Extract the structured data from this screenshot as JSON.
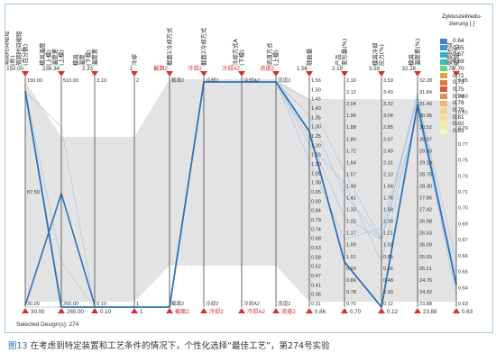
{
  "chart_data": {
    "type": "parallel_coordinates",
    "axes": [
      {
        "label": "周期时间缩短\n(秒)\n周期时间缩短\n(百分数)",
        "top_value": "150.00",
        "bottom_value": "30.00",
        "ticks": [
          "150.00",
          "87.50",
          "30.00"
        ],
        "label_color": "#333333"
      },
      {
        "label": "模具温度\n(上模)\n温度差\n(上模)",
        "top_value": "238.34",
        "bottom_value": "265.00",
        "ticks": [
          "510.00",
          "265.00"
        ],
        "label_color": "#333333"
      },
      {
        "label": "模具\n温度\n(下模)\n温度差",
        "top_value": "2.33",
        "bottom_value": "0.10",
        "ticks": [
          "3.10",
          "0.10"
        ],
        "label_color": "#333333"
      },
      {
        "label": "冷却",
        "top_value": "1",
        "bottom_value": "1",
        "ticks": [
          "2",
          "1"
        ],
        "label_color": "#333333"
      },
      {
        "label": "截面1冷却方式",
        "top_value": "截面2",
        "bottom_value": "截面2",
        "ticks": [
          "截面2",
          "截面2"
        ],
        "label_color": "#cc2b2b"
      },
      {
        "label": "截面2冷却方式",
        "top_value": "冷却2",
        "bottom_value": "冷却2",
        "ticks": [
          "冷却2",
          "冷却2"
        ],
        "label_color": "#cc2b2b"
      },
      {
        "label": "冷却方式A\n(下模)",
        "top_value": "冷却A2",
        "bottom_value": "冷却A2",
        "ticks": [
          "冷却A2",
          "冷却A2"
        ],
        "label_color": "#cc2b2b"
      },
      {
        "label": "流道方式\n(上模)",
        "top_value": "流道2",
        "bottom_value": "流道2",
        "ticks": [
          "流道2",
          "流道2"
        ],
        "label_color": "#cc2b2b"
      },
      {
        "label": "翘曲量",
        "top_value": "1.56",
        "bottom_value": "0.86",
        "ticks": [
          "1.56",
          "1.50",
          "1.45",
          "1.40",
          "1.35",
          "1.30",
          "1.25",
          "1.20",
          "1.15",
          "1.10",
          "1.05",
          "1.00",
          "0.95",
          "0.90",
          "0.84",
          "0.79",
          "0.74",
          "0.68",
          "0.63",
          "0.58",
          "0.52",
          "0.47",
          "0.41",
          "0.36",
          "0.31"
        ],
        "label_color": "#333333"
      },
      {
        "label": "产品\n变形量(%)",
        "top_value": "2.19",
        "bottom_value": "0.70",
        "ticks": [
          "2.19",
          "2.12",
          "2.04",
          "1.96",
          "1.88",
          "1.80",
          "1.72",
          "1.64",
          "1.57",
          "1.49",
          "1.41",
          "1.33",
          "1.25",
          "1.17",
          "1.09",
          "1.01",
          "0.93",
          "0.86",
          "0.78",
          "0.70"
        ],
        "label_color": "#333333"
      },
      {
        "label": "模具冷却\n应力(%)",
        "top_value": "3.59",
        "bottom_value": "0.12",
        "ticks": [
          "3.59",
          "3.40",
          "3.22",
          "3.04",
          "2.85",
          "2.67",
          "2.49",
          "2.31",
          "2.12",
          "1.94",
          "1.76",
          "1.58",
          "1.39",
          "1.21",
          "1.03",
          "0.85",
          "0.66",
          "0.48",
          "0.30",
          "0.12"
        ],
        "label_color": "#333333"
      },
      {
        "label": "模具\n温度差(%)",
        "top_value": "32.28",
        "bottom_value": "23.88",
        "ticks": [
          "32.28",
          "31.84",
          "31.40",
          "30.96",
          "30.52",
          "30.07",
          "29.63",
          "29.19",
          "28.75",
          "28.30",
          "27.86",
          "27.42",
          "26.98",
          "26.53",
          "26.09",
          "25.65",
          "25.21",
          "24.76",
          "24.32",
          "23.88"
        ],
        "label_color": "#333333"
      },
      {
        "label": "周期时间\n缩短(%)",
        "top_value": "0.70",
        "bottom_value": "0.63",
        "ticks": [
          "0.85",
          "0.83",
          "0.81",
          "0.79",
          "0.77",
          "0.75",
          "0.73",
          "0.71",
          "0.70",
          "0.69",
          "0.67",
          "0.66",
          "0.65",
          "0.64",
          "0.63"
        ],
        "label_color": "#333333"
      }
    ],
    "selected_label": "Selected Design(s): 274",
    "colorbar": {
      "title": "Zykluszeitredu-\nzierung [ ]",
      "entries": [
        {
          "value": "0.64",
          "color": "#4a7fc4"
        },
        {
          "value": "0.65",
          "color": "#3a9ad6"
        },
        {
          "value": "0.67",
          "color": "#2fb3c9"
        },
        {
          "value": "0.69",
          "color": "#3cbfa9"
        },
        {
          "value": "0.70",
          "color": "#6fcf8a"
        },
        {
          "value": "0.72",
          "color": "#e0a63a"
        },
        {
          "value": "0.73",
          "color": "#e07a3a"
        },
        {
          "value": "0.75",
          "color": "#d9573a"
        },
        {
          "value": "0.76",
          "color": "#e68c5a"
        },
        {
          "value": "0.78",
          "color": "#f3b07a"
        },
        {
          "value": "0.79",
          "color": "#f7cf8a"
        },
        {
          "value": "0.81",
          "color": "#f3e08a"
        },
        {
          "value": "0.82",
          "color": "#f6ec9c"
        },
        {
          "value": "0.83",
          "color": "#faf4b8"
        }
      ]
    },
    "selected_design_values": {
      "axis_positions": [
        0.96,
        0.0,
        0.0,
        0.0,
        0.0,
        1.0,
        1.0,
        1.0,
        0.78,
        0.2,
        0.0,
        0.9,
        0.1
      ]
    }
  },
  "caption": {
    "tag": "图13",
    "text": " 在考虑到特定装置和工艺条件的情况下，个性化选择“最佳工艺”，第274号实验"
  },
  "colors": {
    "frame_border": "#a9c8d8",
    "band_fill": "#d9d9d9",
    "selected_line": "#2f73b8",
    "thin_line": "#9fc3e5",
    "marker": "#d43030"
  }
}
